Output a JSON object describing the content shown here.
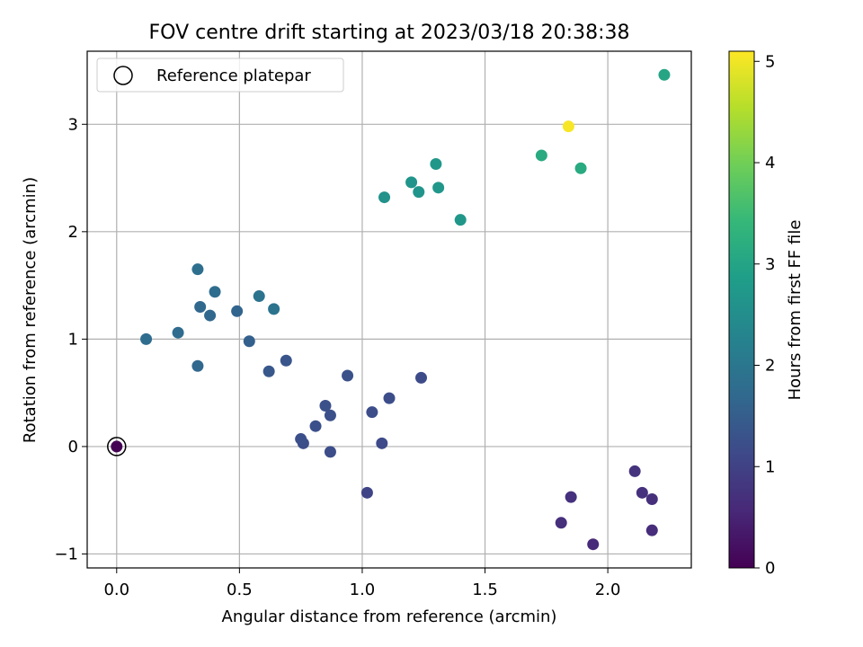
{
  "chart_data": {
    "type": "scatter",
    "title": "FOV centre drift starting at 2023/03/18 20:38:38",
    "xlabel": "Angular distance from reference (arcmin)",
    "ylabel": "Rotation from reference (arcmin)",
    "xlim": [
      -0.12,
      2.34
    ],
    "ylim": [
      -1.13,
      3.68
    ],
    "xticks": [
      0.0,
      0.5,
      1.0,
      1.5,
      2.0
    ],
    "xtick_labels": [
      "0.0",
      "0.5",
      "1.0",
      "1.5",
      "2.0"
    ],
    "yticks": [
      -1,
      0,
      1,
      2,
      3
    ],
    "ytick_labels": [
      "−1",
      "0",
      "1",
      "2",
      "3"
    ],
    "grid": true,
    "legend": {
      "position": "top-left",
      "entries": [
        "Reference platepar"
      ]
    },
    "colorbar": {
      "label": "Hours from first FF file",
      "colormap": "viridis",
      "range": [
        0,
        5.1
      ],
      "ticks": [
        0,
        1,
        2,
        3,
        4,
        5
      ],
      "tick_labels": [
        "0",
        "1",
        "2",
        "3",
        "4",
        "5"
      ]
    },
    "reference": {
      "x": 0.0,
      "y": 0.0
    },
    "points": [
      {
        "x": 0.0,
        "y": 0.0,
        "h": 0.0
      },
      {
        "x": 2.11,
        "y": -0.23,
        "h": 0.75
      },
      {
        "x": 2.14,
        "y": -0.43,
        "h": 0.72
      },
      {
        "x": 2.18,
        "y": -0.49,
        "h": 0.7
      },
      {
        "x": 2.18,
        "y": -0.78,
        "h": 0.65
      },
      {
        "x": 1.85,
        "y": -0.47,
        "h": 0.72
      },
      {
        "x": 1.81,
        "y": -0.71,
        "h": 0.68
      },
      {
        "x": 1.94,
        "y": -0.91,
        "h": 0.6
      },
      {
        "x": 1.02,
        "y": -0.43,
        "h": 1.05
      },
      {
        "x": 0.87,
        "y": -0.05,
        "h": 1.2
      },
      {
        "x": 1.08,
        "y": 0.03,
        "h": 1.15
      },
      {
        "x": 0.76,
        "y": 0.03,
        "h": 1.22
      },
      {
        "x": 0.75,
        "y": 0.07,
        "h": 1.25
      },
      {
        "x": 0.81,
        "y": 0.19,
        "h": 1.25
      },
      {
        "x": 0.87,
        "y": 0.29,
        "h": 1.25
      },
      {
        "x": 0.85,
        "y": 0.38,
        "h": 1.28
      },
      {
        "x": 1.04,
        "y": 0.32,
        "h": 1.2
      },
      {
        "x": 1.11,
        "y": 0.45,
        "h": 1.2
      },
      {
        "x": 1.24,
        "y": 0.64,
        "h": 1.18
      },
      {
        "x": 0.94,
        "y": 0.66,
        "h": 1.28
      },
      {
        "x": 0.69,
        "y": 0.8,
        "h": 1.35
      },
      {
        "x": 0.62,
        "y": 0.7,
        "h": 1.4
      },
      {
        "x": 0.54,
        "y": 0.98,
        "h": 1.55
      },
      {
        "x": 0.33,
        "y": 0.75,
        "h": 1.7
      },
      {
        "x": 0.12,
        "y": 1.0,
        "h": 1.8
      },
      {
        "x": 0.25,
        "y": 1.06,
        "h": 1.78
      },
      {
        "x": 0.34,
        "y": 1.3,
        "h": 1.7
      },
      {
        "x": 0.38,
        "y": 1.22,
        "h": 1.7
      },
      {
        "x": 0.49,
        "y": 1.26,
        "h": 1.65
      },
      {
        "x": 0.4,
        "y": 1.44,
        "h": 1.8
      },
      {
        "x": 0.33,
        "y": 1.65,
        "h": 1.85
      },
      {
        "x": 0.58,
        "y": 1.4,
        "h": 1.95
      },
      {
        "x": 0.64,
        "y": 1.28,
        "h": 1.95
      },
      {
        "x": 1.09,
        "y": 2.32,
        "h": 2.6
      },
      {
        "x": 1.2,
        "y": 2.46,
        "h": 2.65
      },
      {
        "x": 1.23,
        "y": 2.37,
        "h": 2.65
      },
      {
        "x": 1.3,
        "y": 2.63,
        "h": 2.7
      },
      {
        "x": 1.31,
        "y": 2.41,
        "h": 2.7
      },
      {
        "x": 1.4,
        "y": 2.11,
        "h": 2.7
      },
      {
        "x": 1.73,
        "y": 2.71,
        "h": 3.1
      },
      {
        "x": 1.89,
        "y": 2.59,
        "h": 3.1
      },
      {
        "x": 2.23,
        "y": 3.46,
        "h": 3.0
      },
      {
        "x": 1.84,
        "y": 2.98,
        "h": 5.05
      }
    ]
  }
}
